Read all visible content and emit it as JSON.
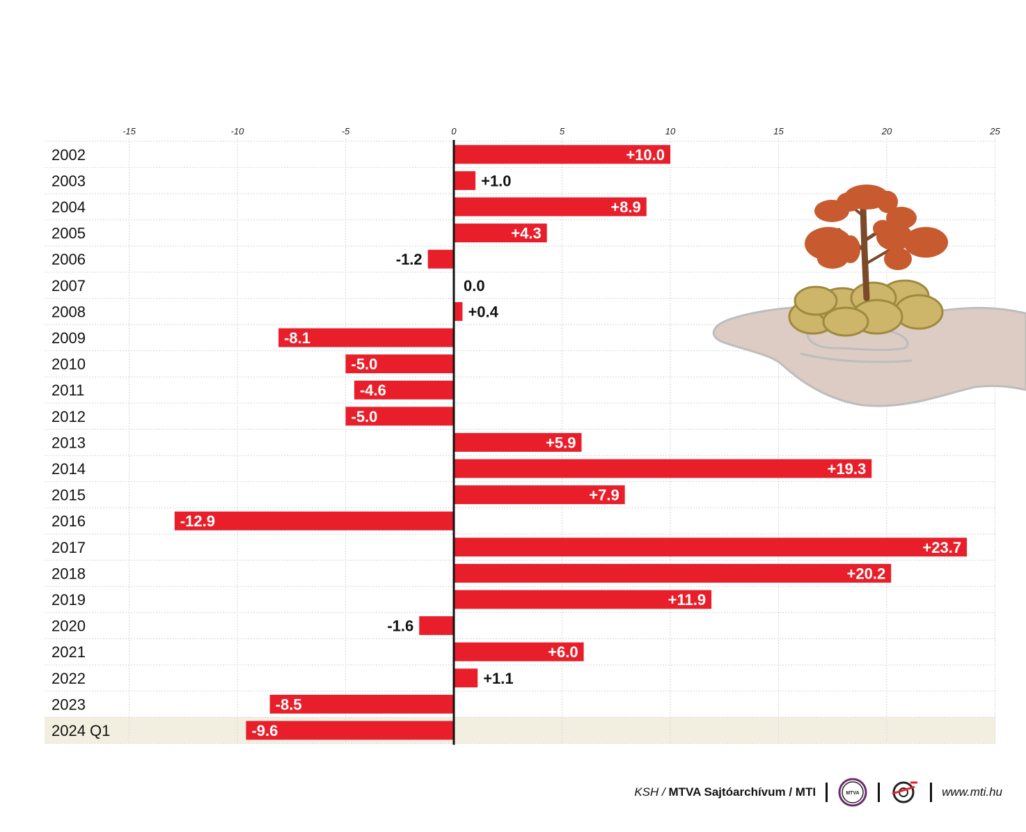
{
  "chart_data": {
    "type": "bar",
    "orientation": "horizontal",
    "categories": [
      "2002",
      "2003",
      "2004",
      "2005",
      "2006",
      "2007",
      "2008",
      "2009",
      "2010",
      "2011",
      "2012",
      "2013",
      "2014",
      "2015",
      "2016",
      "2017",
      "2018",
      "2019",
      "2020",
      "2021",
      "2022",
      "2023",
      "2024 Q1"
    ],
    "values": [
      10.0,
      1.0,
      8.9,
      4.3,
      -1.2,
      0.0,
      0.4,
      -8.1,
      -5.0,
      -4.6,
      -5.0,
      5.9,
      19.3,
      7.9,
      -12.9,
      23.7,
      20.2,
      11.9,
      -1.6,
      6.0,
      1.1,
      -8.5,
      -9.6
    ],
    "value_labels": [
      "+10.0",
      "+1.0",
      "+8.9",
      "+4.3",
      "-1.2",
      "0.0",
      "+0.4",
      "-8.1",
      "-5.0",
      "-4.6",
      "-5.0",
      "+5.9",
      "+19.3",
      "+7.9",
      "-12.9",
      "+23.7",
      "+20.2",
      "+11.9",
      "-1.6",
      "+6.0",
      "+1.1",
      "-8.5",
      "-9.6"
    ],
    "xlim": [
      -15,
      25
    ],
    "xticks": [
      -15,
      -10,
      -5,
      0,
      5,
      10,
      15,
      20,
      25
    ],
    "xtick_labels": [
      "-15",
      "-10",
      "-5",
      "0",
      "5",
      "10",
      "15",
      "20",
      "25"
    ],
    "highlighted_category": "2024 Q1",
    "grid": true,
    "bar_color": "#e81f2a",
    "highlight_color": "#f3efe0",
    "title": "",
    "xlabel": "",
    "ylabel": ""
  },
  "illustration": {
    "subject": "hand-holding-coins-with-tree",
    "colors": {
      "foliage": "#c75a2e",
      "trunk": "#7a4a2a",
      "coins": "#cdb56a",
      "hand": "#dcccc4"
    }
  },
  "footer": {
    "source_prefix": "KSH /",
    "source_main": "MTVA Sajtóarchívum / MTI",
    "logo_mtva_text": "MTVA",
    "url": "www.mti.hu"
  }
}
